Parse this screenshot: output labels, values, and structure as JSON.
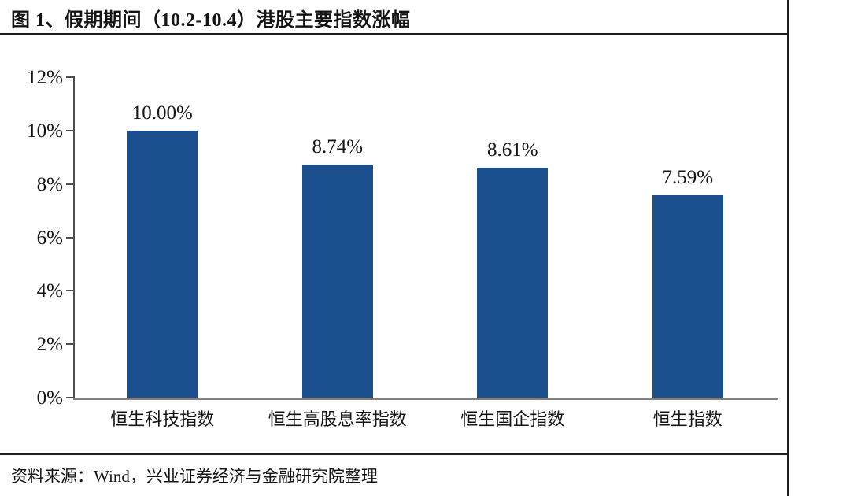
{
  "header": {
    "title": "图 1、假期期间（10.2-10.4）港股主要指数涨幅"
  },
  "footer": {
    "source": "资料来源：Wind，兴业证券经济与金融研究院整理"
  },
  "colors": {
    "bar": "#1b4e8c",
    "axis": "#808080",
    "rule": "#1f1f1f",
    "text": "#141414"
  },
  "chart_data": {
    "type": "bar",
    "title": "图 1、假期期间（10.2-10.4）港股主要指数涨幅",
    "categories": [
      "恒生科技指数",
      "恒生高股息率指数",
      "恒生国企指数",
      "恒生指数"
    ],
    "values": [
      10.0,
      8.74,
      8.61,
      7.59
    ],
    "value_labels": [
      "10.00%",
      "8.74%",
      "8.61%",
      "7.59%"
    ],
    "xlabel": "",
    "ylabel": "",
    "ylim": [
      0,
      12
    ],
    "ytick_step": 2,
    "ytick_labels": [
      "0%",
      "2%",
      "4%",
      "6%",
      "8%",
      "10%",
      "12%"
    ],
    "grid": false,
    "legend": false,
    "bar_color": "#1b4e8c",
    "source": "资料来源：Wind，兴业证券经济与金融研究院整理"
  }
}
